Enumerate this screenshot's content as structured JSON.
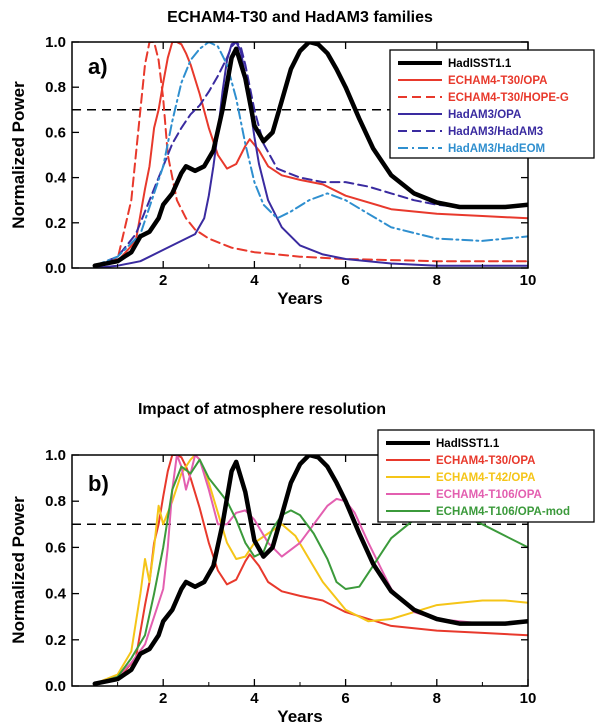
{
  "chart_data": [
    {
      "type": "line",
      "panel_label": "a)",
      "title": "ECHAM4-T30 and HadAM3 families",
      "xlabel": "Years",
      "ylabel": "Normalized Power",
      "xlim": [
        0,
        10
      ],
      "ylim": [
        0,
        1
      ],
      "xticks": [
        "2",
        "4",
        "6",
        "8",
        "10"
      ],
      "yticks": [
        "0.0",
        "0.2",
        "0.4",
        "0.6",
        "0.8",
        "1.0"
      ],
      "reference_line": {
        "y": 0.7,
        "style": "dashed",
        "color": "#000000"
      },
      "legend_position": "top-right",
      "series": [
        {
          "name": "HadISST1.1",
          "color": "#000000",
          "style": "solid",
          "width": 4.5,
          "x": [
            0.5,
            1.0,
            1.3,
            1.5,
            1.7,
            1.9,
            2.0,
            2.2,
            2.4,
            2.5,
            2.7,
            2.9,
            3.1,
            3.3,
            3.5,
            3.6,
            3.8,
            4.0,
            4.2,
            4.4,
            4.6,
            4.8,
            5.0,
            5.2,
            5.4,
            5.6,
            5.8,
            6.0,
            6.3,
            6.6,
            7.0,
            7.5,
            8.0,
            8.5,
            9.0,
            9.5,
            10.0
          ],
          "y": [
            0.01,
            0.03,
            0.07,
            0.14,
            0.16,
            0.22,
            0.28,
            0.33,
            0.42,
            0.45,
            0.43,
            0.45,
            0.52,
            0.7,
            0.93,
            0.97,
            0.84,
            0.63,
            0.56,
            0.6,
            0.74,
            0.88,
            0.96,
            1.0,
            0.99,
            0.95,
            0.88,
            0.8,
            0.66,
            0.53,
            0.41,
            0.33,
            0.29,
            0.27,
            0.27,
            0.27,
            0.28
          ]
        },
        {
          "name": "ECHAM4-T30/OPA",
          "color": "#e8392c",
          "style": "solid",
          "width": 2,
          "x": [
            0.5,
            1.0,
            1.4,
            1.6,
            1.7,
            1.8,
            1.9,
            2.0,
            2.1,
            2.2,
            2.3,
            2.4,
            2.5,
            2.6,
            2.8,
            3.0,
            3.2,
            3.4,
            3.6,
            3.8,
            3.9,
            4.1,
            4.3,
            4.6,
            5.0,
            5.5,
            6.0,
            7.0,
            8.0,
            9.0,
            10.0
          ],
          "y": [
            0.01,
            0.03,
            0.12,
            0.35,
            0.45,
            0.62,
            0.7,
            0.82,
            0.93,
            1.0,
            1.0,
            0.99,
            0.95,
            0.9,
            0.77,
            0.62,
            0.5,
            0.44,
            0.46,
            0.54,
            0.57,
            0.52,
            0.45,
            0.41,
            0.39,
            0.37,
            0.32,
            0.26,
            0.24,
            0.23,
            0.22
          ]
        },
        {
          "name": "ECHAM4-T30/HOPE-G",
          "color": "#e8392c",
          "style": "dashed",
          "width": 2,
          "x": [
            0.5,
            1.0,
            1.3,
            1.5,
            1.6,
            1.7,
            1.8,
            1.9,
            2.0,
            2.1,
            2.3,
            2.5,
            2.7,
            3.0,
            3.5,
            4.0,
            5.0,
            6.0,
            8.0,
            10.0
          ],
          "y": [
            0.01,
            0.04,
            0.3,
            0.7,
            0.9,
            1.0,
            1.0,
            0.92,
            0.75,
            0.5,
            0.3,
            0.22,
            0.17,
            0.13,
            0.09,
            0.07,
            0.05,
            0.04,
            0.03,
            0.03
          ]
        },
        {
          "name": "HadAM3/OPA",
          "color": "#3a2ba0",
          "style": "solid",
          "width": 2,
          "x": [
            0.5,
            1.0,
            1.5,
            2.0,
            2.4,
            2.7,
            2.9,
            3.0,
            3.1,
            3.2,
            3.3,
            3.4,
            3.5,
            3.6,
            3.7,
            3.8,
            3.9,
            4.0,
            4.1,
            4.3,
            4.6,
            5.0,
            5.5,
            6.0,
            7.0,
            8.0,
            10.0
          ],
          "y": [
            0.0,
            0.01,
            0.03,
            0.08,
            0.12,
            0.15,
            0.22,
            0.32,
            0.45,
            0.6,
            0.78,
            0.92,
            0.99,
            1.0,
            0.96,
            0.85,
            0.72,
            0.58,
            0.46,
            0.3,
            0.18,
            0.1,
            0.06,
            0.04,
            0.02,
            0.01,
            0.01
          ]
        },
        {
          "name": "HadAM3/HadAM3",
          "color": "#3a2ba0",
          "style": "dashed",
          "width": 2,
          "x": [
            0.5,
            1.0,
            1.4,
            1.6,
            1.8,
            2.0,
            2.2,
            2.4,
            2.6,
            2.8,
            3.0,
            3.2,
            3.4,
            3.5,
            3.6,
            3.7,
            3.8,
            4.0,
            4.2,
            4.5,
            5.0,
            5.5,
            6.0,
            6.5,
            7.0,
            7.5,
            8.0,
            8.5,
            9.0,
            10.0
          ],
          "y": [
            0.01,
            0.05,
            0.15,
            0.25,
            0.35,
            0.45,
            0.55,
            0.62,
            0.68,
            0.72,
            0.78,
            0.85,
            0.93,
            0.98,
            1.0,
            0.98,
            0.9,
            0.7,
            0.55,
            0.44,
            0.4,
            0.38,
            0.38,
            0.36,
            0.33,
            0.3,
            0.28,
            0.27,
            0.27,
            0.28
          ]
        },
        {
          "name": "HadAM3/HadEOM",
          "color": "#2f8fcf",
          "style": "dashdot",
          "width": 2,
          "x": [
            0.5,
            1.0,
            1.5,
            2.0,
            2.2,
            2.4,
            2.6,
            2.8,
            3.0,
            3.2,
            3.4,
            3.6,
            3.8,
            4.0,
            4.2,
            4.5,
            4.8,
            5.2,
            5.6,
            6.0,
            6.5,
            7.0,
            8.0,
            9.0,
            10.0
          ],
          "y": [
            0.01,
            0.05,
            0.15,
            0.45,
            0.65,
            0.82,
            0.92,
            0.97,
            1.0,
            0.98,
            0.9,
            0.75,
            0.55,
            0.38,
            0.28,
            0.22,
            0.25,
            0.3,
            0.33,
            0.3,
            0.24,
            0.18,
            0.13,
            0.12,
            0.14
          ]
        }
      ]
    },
    {
      "type": "line",
      "panel_label": "b)",
      "title": "Impact of atmosphere resolution",
      "xlabel": "Years",
      "ylabel": "Normalized Power",
      "xlim": [
        0,
        10
      ],
      "ylim": [
        0,
        1
      ],
      "xticks": [
        "2",
        "4",
        "6",
        "8",
        "10"
      ],
      "yticks": [
        "0.0",
        "0.2",
        "0.4",
        "0.6",
        "0.8",
        "1.0"
      ],
      "reference_line": {
        "y": 0.7,
        "style": "dashed",
        "color": "#000000"
      },
      "legend_position": "top-right",
      "series": [
        {
          "name": "HadISST1.1",
          "color": "#000000",
          "style": "solid",
          "width": 4.5,
          "x": [
            0.5,
            1.0,
            1.3,
            1.5,
            1.7,
            1.9,
            2.0,
            2.2,
            2.4,
            2.5,
            2.7,
            2.9,
            3.1,
            3.3,
            3.5,
            3.6,
            3.8,
            4.0,
            4.2,
            4.4,
            4.6,
            4.8,
            5.0,
            5.2,
            5.4,
            5.6,
            5.8,
            6.0,
            6.3,
            6.6,
            7.0,
            7.5,
            8.0,
            8.5,
            9.0,
            9.5,
            10.0
          ],
          "y": [
            0.01,
            0.03,
            0.07,
            0.14,
            0.16,
            0.22,
            0.28,
            0.33,
            0.42,
            0.45,
            0.43,
            0.45,
            0.52,
            0.7,
            0.93,
            0.97,
            0.84,
            0.63,
            0.56,
            0.6,
            0.74,
            0.88,
            0.96,
            1.0,
            0.99,
            0.95,
            0.88,
            0.8,
            0.66,
            0.53,
            0.41,
            0.33,
            0.29,
            0.27,
            0.27,
            0.27,
            0.28
          ]
        },
        {
          "name": "ECHAM4-T30/OPA",
          "color": "#e8392c",
          "style": "solid",
          "width": 2,
          "x": [
            0.5,
            1.0,
            1.4,
            1.6,
            1.7,
            1.8,
            1.9,
            2.0,
            2.1,
            2.2,
            2.3,
            2.4,
            2.5,
            2.6,
            2.8,
            3.0,
            3.2,
            3.4,
            3.6,
            3.8,
            3.9,
            4.1,
            4.3,
            4.6,
            5.0,
            5.5,
            6.0,
            7.0,
            8.0,
            9.0,
            10.0
          ],
          "y": [
            0.01,
            0.03,
            0.12,
            0.35,
            0.45,
            0.62,
            0.7,
            0.82,
            0.93,
            1.0,
            1.0,
            0.99,
            0.95,
            0.9,
            0.77,
            0.62,
            0.5,
            0.44,
            0.46,
            0.54,
            0.57,
            0.52,
            0.45,
            0.41,
            0.39,
            0.37,
            0.32,
            0.26,
            0.24,
            0.23,
            0.22
          ]
        },
        {
          "name": "ECHAM4-T42/OPA",
          "color": "#f5c518",
          "style": "solid",
          "width": 2,
          "x": [
            0.5,
            1.0,
            1.3,
            1.5,
            1.6,
            1.7,
            1.8,
            1.9,
            2.0,
            2.2,
            2.4,
            2.6,
            2.7,
            2.8,
            3.0,
            3.2,
            3.4,
            3.6,
            3.8,
            4.0,
            4.3,
            4.6,
            4.9,
            5.2,
            5.5,
            6.0,
            6.5,
            7.0,
            7.5,
            8.0,
            8.5,
            9.0,
            9.5,
            10.0
          ],
          "y": [
            0.01,
            0.05,
            0.15,
            0.4,
            0.55,
            0.45,
            0.6,
            0.78,
            0.7,
            0.8,
            0.92,
            0.98,
            1.0,
            0.98,
            0.88,
            0.75,
            0.62,
            0.55,
            0.56,
            0.62,
            0.66,
            0.7,
            0.65,
            0.55,
            0.45,
            0.33,
            0.28,
            0.29,
            0.32,
            0.35,
            0.36,
            0.37,
            0.37,
            0.36
          ]
        },
        {
          "name": "ECHAM4-T106/OPA",
          "color": "#e35fb0",
          "style": "solid",
          "width": 2,
          "x": [
            0.5,
            1.0,
            1.3,
            1.6,
            1.8,
            2.0,
            2.1,
            2.2,
            2.3,
            2.4,
            2.5,
            2.6,
            2.7,
            2.8,
            3.0,
            3.2,
            3.4,
            3.6,
            3.8,
            4.0,
            4.3,
            4.6,
            5.0,
            5.3,
            5.6,
            5.8,
            6.0,
            6.2,
            6.5,
            7.0,
            7.5,
            8.0,
            8.5,
            9.0,
            9.5,
            10.0
          ],
          "y": [
            0.01,
            0.04,
            0.1,
            0.18,
            0.3,
            0.42,
            0.6,
            0.85,
            1.0,
            0.95,
            0.85,
            0.92,
            1.0,
            0.98,
            0.85,
            0.7,
            0.7,
            0.75,
            0.76,
            0.72,
            0.62,
            0.56,
            0.62,
            0.7,
            0.78,
            0.81,
            0.8,
            0.75,
            0.62,
            0.42,
            0.32,
            0.29,
            0.28,
            0.27,
            0.27,
            0.28
          ]
        },
        {
          "name": "ECHAM4-T106/OPA-mod",
          "color": "#3b9a3b",
          "style": "solid",
          "width": 2,
          "x": [
            0.5,
            1.0,
            1.3,
            1.6,
            1.8,
            2.0,
            2.2,
            2.4,
            2.6,
            2.8,
            3.0,
            3.2,
            3.4,
            3.6,
            3.8,
            4.0,
            4.2,
            4.4,
            4.6,
            4.8,
            5.0,
            5.3,
            5.6,
            5.8,
            6.0,
            6.3,
            6.6,
            7.0,
            7.5,
            8.0,
            8.5,
            9.0,
            9.5,
            10.0
          ],
          "y": [
            0.01,
            0.04,
            0.12,
            0.22,
            0.4,
            0.6,
            0.85,
            0.95,
            0.92,
            0.98,
            0.9,
            0.85,
            0.8,
            0.72,
            0.62,
            0.56,
            0.58,
            0.68,
            0.74,
            0.76,
            0.74,
            0.66,
            0.55,
            0.45,
            0.42,
            0.43,
            0.52,
            0.64,
            0.72,
            0.75,
            0.74,
            0.7,
            0.65,
            0.6
          ]
        }
      ]
    }
  ]
}
